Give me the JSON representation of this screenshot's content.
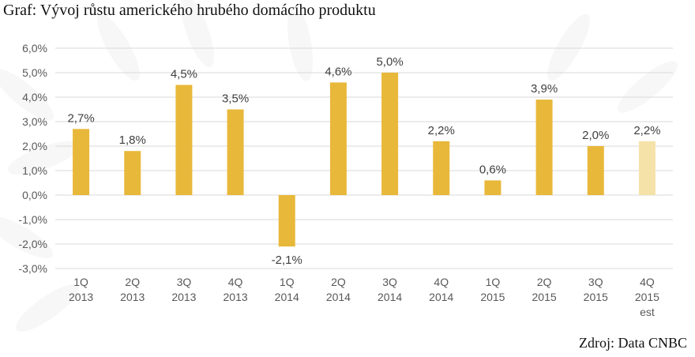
{
  "header": {
    "title": "Graf: Vývoj růstu amerického hrubého domácího produktu"
  },
  "footer": {
    "source": "Zdroj: Data CNBC"
  },
  "colors": {
    "bar": "#E8B83A",
    "bar_estimate": "#F5E2A8",
    "grid": "#D9D9D9",
    "text": "#595959"
  },
  "chart_data": {
    "type": "bar",
    "title": "",
    "xlabel": "",
    "ylabel": "",
    "ylim": [
      -3.0,
      6.0
    ],
    "grid": true,
    "yticks": [
      "6,0%",
      "5,0%",
      "4,0%",
      "3,0%",
      "2,0%",
      "1,0%",
      "0,0%",
      "-1,0%",
      "-2,0%",
      "-3,0%"
    ],
    "categories": [
      [
        "1Q",
        "2013"
      ],
      [
        "2Q",
        "2013"
      ],
      [
        "3Q",
        "2013"
      ],
      [
        "4Q",
        "2013"
      ],
      [
        "1Q",
        "2014"
      ],
      [
        "2Q",
        "2014"
      ],
      [
        "3Q",
        "2014"
      ],
      [
        "4Q",
        "2014"
      ],
      [
        "1Q",
        "2015"
      ],
      [
        "2Q",
        "2015"
      ],
      [
        "3Q",
        "2015"
      ],
      [
        "4Q",
        "2015",
        "est"
      ]
    ],
    "values": [
      2.7,
      1.8,
      4.5,
      3.5,
      -2.1,
      4.6,
      5.0,
      2.2,
      0.6,
      3.9,
      2.0,
      2.2
    ],
    "labels": [
      "2,7%",
      "1,8%",
      "4,5%",
      "3,5%",
      "-2,1%",
      "4,6%",
      "5,0%",
      "2,2%",
      "0,6%",
      "3,9%",
      "2,0%",
      "2,2%"
    ],
    "estimate": [
      false,
      false,
      false,
      false,
      false,
      false,
      false,
      false,
      false,
      false,
      false,
      true
    ]
  }
}
